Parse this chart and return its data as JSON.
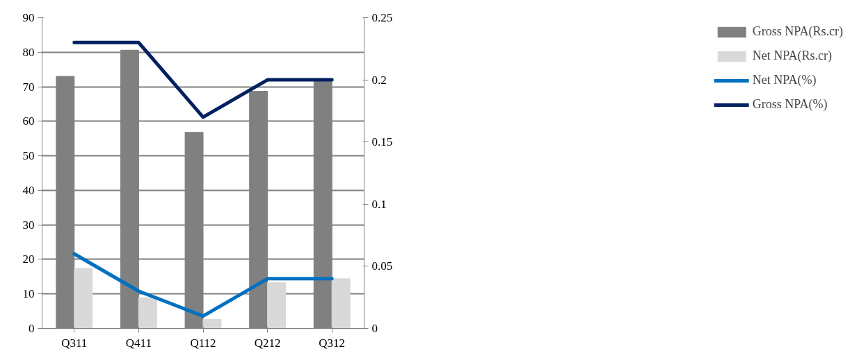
{
  "chart_data": {
    "type": "bar",
    "categories": [
      "Q311",
      "Q411",
      "Q112",
      "Q212",
      "Q312"
    ],
    "series": [
      {
        "name": "Gross NPA(Rs.cr)",
        "color": "#808080",
        "values": [
          73,
          80.6,
          56.8,
          68.7,
          71.5
        ]
      },
      {
        "name": "Net NPA(Rs.cr)",
        "color": "#d9d9d9",
        "values": [
          17.4,
          8.9,
          2.6,
          13.3,
          14.4
        ]
      },
      {
        "name": "Net NPA(%)",
        "type": "line",
        "axis": "y2",
        "color": "#0070c0",
        "values": [
          0.06,
          0.03,
          0.01,
          0.04,
          0.04
        ]
      },
      {
        "name": "Gross NPA(%)",
        "type": "line",
        "axis": "y2",
        "color": "#002060",
        "values": [
          0.23,
          0.23,
          0.17,
          0.2,
          0.2
        ]
      }
    ],
    "ylim": [
      0,
      90
    ],
    "yticks": [
      0,
      10,
      20,
      30,
      40,
      50,
      60,
      70,
      80,
      90
    ],
    "y2lim": [
      0,
      0.25
    ],
    "y2ticks": [
      0,
      0.05,
      0.1,
      0.15,
      0.2,
      0.25
    ],
    "grid": "y",
    "legend": "right"
  }
}
